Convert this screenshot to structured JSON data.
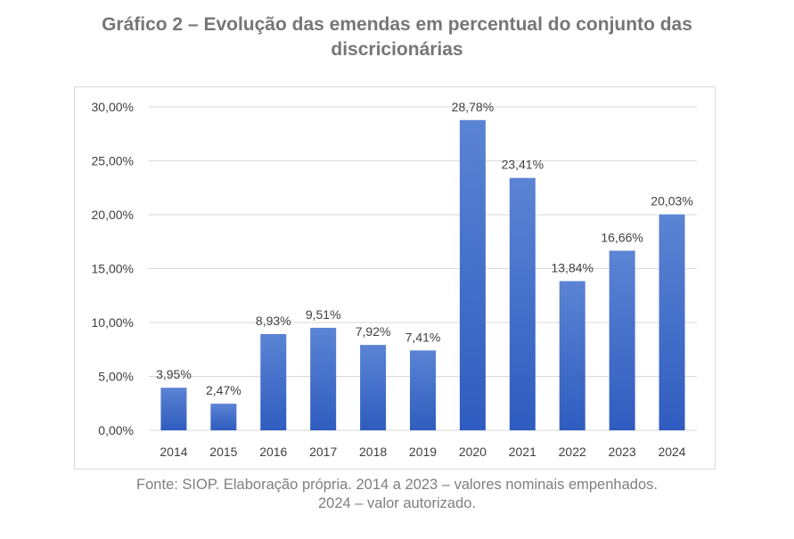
{
  "title": {
    "line1": "Gráfico 2 – Evolução das emendas em percentual do conjunto das",
    "line2": "discricionárias"
  },
  "source": {
    "line1": "Fonte: SIOP. Elaboração própria. 2014 a 2023 – valores nominais empenhados.",
    "line2": "2024 – valor autorizado."
  },
  "chart_data": {
    "type": "bar",
    "title": "Gráfico 2 – Evolução das emendas em percentual do conjunto das discricionárias",
    "categories": [
      "2014",
      "2015",
      "2016",
      "2017",
      "2018",
      "2019",
      "2020",
      "2021",
      "2022",
      "2023",
      "2024"
    ],
    "values": [
      3.95,
      2.47,
      8.93,
      9.51,
      7.92,
      7.41,
      28.78,
      23.41,
      13.84,
      16.66,
      20.03
    ],
    "data_labels": [
      "3,95%",
      "2,47%",
      "8,93%",
      "9,51%",
      "7,92%",
      "7,41%",
      "28,78%",
      "23,41%",
      "13,84%",
      "16,66%",
      "20,03%"
    ],
    "y_ticks": [
      0,
      5,
      10,
      15,
      20,
      25,
      30
    ],
    "y_tick_labels": [
      "0,00%",
      "5,00%",
      "10,00%",
      "15,00%",
      "20,00%",
      "25,00%",
      "30,00%"
    ],
    "ylim": [
      0,
      30
    ],
    "xlabel": "",
    "ylabel": "",
    "grid": true,
    "legend": "none",
    "bar_color_top": "#5b84d4",
    "bar_color_bottom": "#2f5cbf",
    "grid_color": "#d9d9d9",
    "label_color": "#404040"
  }
}
